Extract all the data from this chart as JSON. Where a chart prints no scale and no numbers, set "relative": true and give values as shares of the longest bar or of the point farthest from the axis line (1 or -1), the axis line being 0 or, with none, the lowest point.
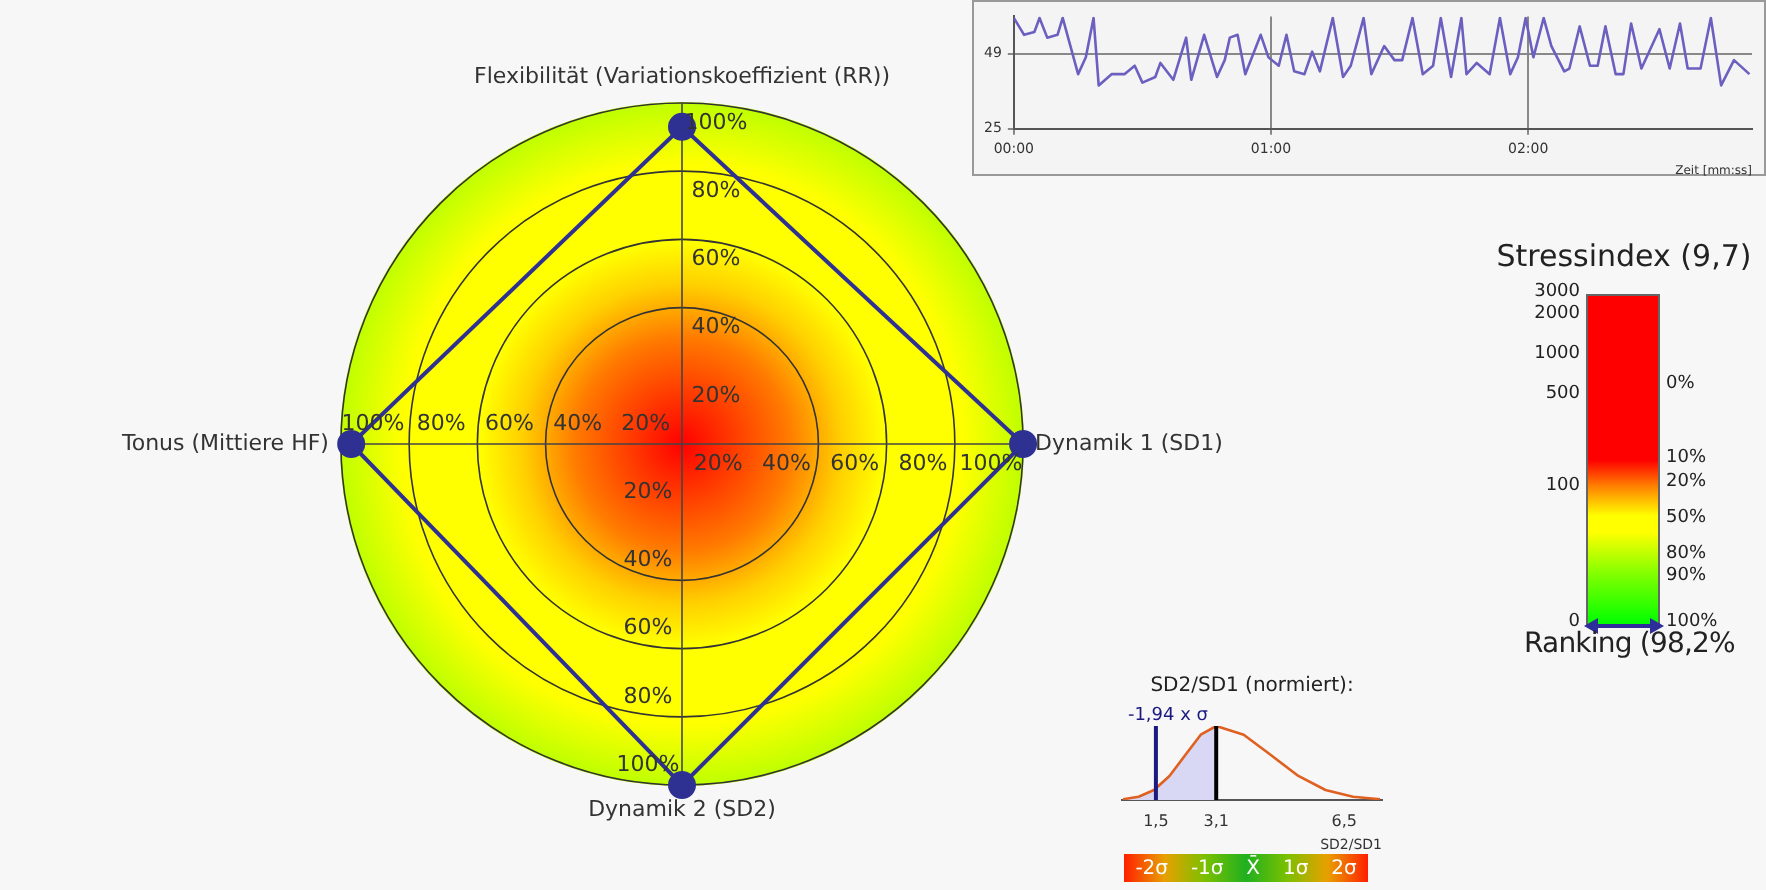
{
  "chart_data": [
    {
      "type": "radar",
      "categories": [
        "Flexibilität (Variationskoeffizient (RR))",
        "Dynamik 1 (SD1)",
        "Dynamik 2 (SD2)",
        "Tonus (Mittiere HF)"
      ],
      "values": [
        93,
        100,
        100,
        97
      ],
      "color": "#2e3192",
      "ylim": [
        0,
        100
      ],
      "yticks": [
        {
          "value": 20,
          "label": "20%"
        },
        {
          "value": 40,
          "label": "40%"
        },
        {
          "value": 60,
          "label": "60%"
        },
        {
          "value": 80,
          "label": "80%"
        },
        {
          "value": 100,
          "label": "100%"
        }
      ],
      "marker": "circle",
      "grid": true
    },
    {
      "type": "line",
      "xlabel": "Zeit [mm:ss]",
      "color": "#6b5fc0",
      "marker": "none",
      "grid": true,
      "xlim": [
        0,
        2.87
      ],
      "xticks": [
        {
          "value": 0,
          "label": "00:00"
        },
        {
          "value": 1,
          "label": "01:00"
        },
        {
          "value": 2,
          "label": "02:00"
        }
      ],
      "ylim": [
        25,
        61
      ],
      "yticks": [
        25,
        49
      ],
      "x": [
        0,
        0.04,
        0.08,
        0.1,
        0.13,
        0.17,
        0.19,
        0.25,
        0.28,
        0.31,
        0.33,
        0.38,
        0.43,
        0.47,
        0.5,
        0.55,
        0.57,
        0.62,
        0.67,
        0.69,
        0.74,
        0.79,
        0.82,
        0.84,
        0.87,
        0.9,
        0.96,
        0.99,
        1.03,
        1.06,
        1.09,
        1.13,
        1.16,
        1.19,
        1.24,
        1.28,
        1.31,
        1.36,
        1.39,
        1.44,
        1.48,
        1.51,
        1.55,
        1.59,
        1.63,
        1.66,
        1.7,
        1.74,
        1.76,
        1.8,
        1.85,
        1.89,
        1.93,
        1.96,
        1.99,
        2.02,
        2.06,
        2.09,
        2.14,
        2.16,
        2.2,
        2.24,
        2.27,
        2.3,
        2.34,
        2.37,
        2.4,
        2.44,
        2.47,
        2.51,
        2.55,
        2.59,
        2.62,
        2.67,
        2.71,
        2.75,
        2.8,
        2.86
      ],
      "values": [
        60.5,
        55.1,
        56,
        60.5,
        54.2,
        55.1,
        60.5,
        42.5,
        47.9,
        60.5,
        38.9,
        42.5,
        42.5,
        45.2,
        39.8,
        41.6,
        46.1,
        40.7,
        54.2,
        40.7,
        55.1,
        41.6,
        47,
        54.2,
        55.1,
        42.5,
        55.1,
        47.9,
        45.2,
        55.1,
        43.4,
        42.5,
        49.7,
        43.4,
        60.5,
        41.6,
        45.2,
        60.5,
        42.5,
        51.5,
        47,
        47,
        60.5,
        42.5,
        45.2,
        60.5,
        41.6,
        60.5,
        42.5,
        46.1,
        42.5,
        60.5,
        42.5,
        47.9,
        60.5,
        47.9,
        60.5,
        51.5,
        43.4,
        44.3,
        57.8,
        45.2,
        45.2,
        57.8,
        42.5,
        42.5,
        58.7,
        44.3,
        49.7,
        56.9,
        44.3,
        58.7,
        44.3,
        44.3,
        60.5,
        38.9,
        47,
        42.5
      ]
    },
    {
      "type": "other",
      "title": "Stressindex (9,7)",
      "annotations": [
        "3000",
        "2000",
        "1000",
        "500",
        "100",
        "0",
        "0%",
        "10%",
        "20%",
        "50%",
        "80%",
        "90%",
        "100%",
        "Ranking (98,2%"
      ]
    },
    {
      "type": "line",
      "title": "SD2/SD1 (normiert):",
      "xlabel": "SD2/SD1",
      "relative": true,
      "xlim": [
        0.6,
        7.5
      ],
      "xticks": [
        {
          "value": 1.5,
          "label": "1,5"
        },
        {
          "value": 3.1,
          "label": "3,1"
        },
        {
          "value": 6.5,
          "label": "6,5"
        }
      ],
      "series": [
        {
          "type": "area",
          "color": "#d8d8f4",
          "x": [
            0.63,
            1.04,
            1.45,
            1.86,
            2.28,
            2.69,
            3.1
          ],
          "values": [
            0.011,
            0.044,
            0.135,
            0.325,
            0.607,
            0.882,
            1
          ]
        },
        {
          "color": "#e06020",
          "x": [
            0.63,
            1.04,
            1.45,
            1.86,
            2.28,
            2.69,
            3.1,
            3.83,
            4.55,
            5.28,
            6.0,
            6.73,
            7.45
          ],
          "values": [
            0.011,
            0.044,
            0.135,
            0.325,
            0.607,
            0.882,
            1,
            0.882,
            0.607,
            0.325,
            0.135,
            0.044,
            0.011
          ]
        }
      ],
      "ref_lines": [
        {
          "axis": "x",
          "value": 1.5,
          "label": "-1,94 x σ",
          "color": "#1a1a80"
        },
        {
          "axis": "x",
          "value": 3.1,
          "color": "#000000"
        }
      ],
      "annotations": [
        "-2σ",
        "-1σ",
        "X̄",
        "1σ",
        "2σ"
      ]
    }
  ]
}
